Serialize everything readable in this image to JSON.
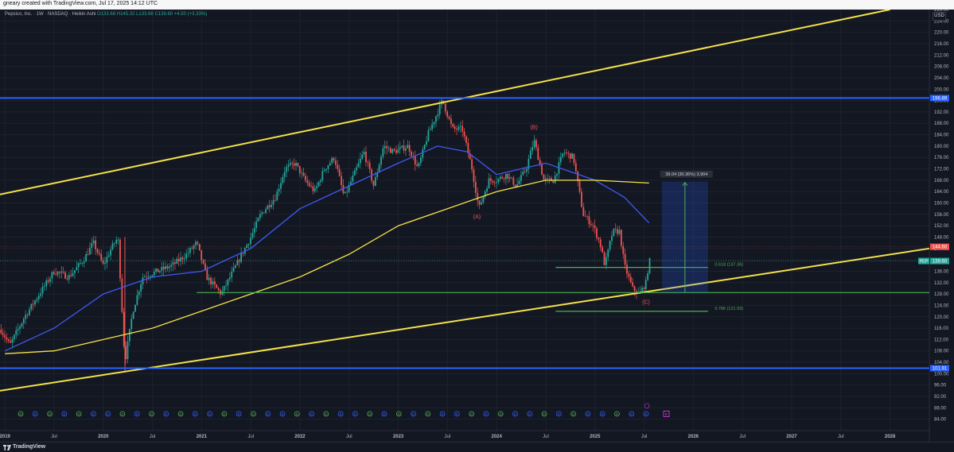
{
  "header": {
    "text": "gneary created with TradingView.com, Jul 17, 2025 14:12 UTC"
  },
  "symbol": {
    "name": "Pepsico, Inc. · 1W · NASDAQ · Heikin Ashi",
    "ohlc": "O133.68 H145.32 L133.68 C139.60 +4.50 (+3.33%)"
  },
  "currency": "USD",
  "branding": {
    "logo": "TradingView"
  },
  "colors": {
    "background": "#131722",
    "up": "#26a69a",
    "down": "#ef5350",
    "yellow": "#f5e14a",
    "blue": "#2962ff",
    "green": "#4caf50",
    "ma_blue": "#3d5af1",
    "ma_yellow": "#f5e14a"
  },
  "chart_data": {
    "type": "candlestick",
    "ylim": [
      80,
      228
    ],
    "y_ticks": [
      84,
      88,
      92,
      96,
      100,
      104,
      108,
      112,
      116,
      120,
      124,
      128,
      132,
      136,
      140,
      144,
      148,
      152,
      156,
      160,
      164,
      168,
      172,
      176,
      180,
      184,
      188,
      192,
      196,
      200,
      204,
      208,
      212,
      216,
      220,
      224,
      228
    ],
    "x_ticks": [
      {
        "label": "2019",
        "t": 2019.0
      },
      {
        "label": "Jul",
        "t": 2019.5
      },
      {
        "label": "2020",
        "t": 2020.0
      },
      {
        "label": "Jul",
        "t": 2020.5
      },
      {
        "label": "2021",
        "t": 2021.0
      },
      {
        "label": "Jul",
        "t": 2021.5
      },
      {
        "label": "2022",
        "t": 2022.0
      },
      {
        "label": "Jul",
        "t": 2022.5
      },
      {
        "label": "2023",
        "t": 2023.0
      },
      {
        "label": "Jul",
        "t": 2023.5
      },
      {
        "label": "2024",
        "t": 2024.0
      },
      {
        "label": "Jul",
        "t": 2024.5
      },
      {
        "label": "2025",
        "t": 2025.0
      },
      {
        "label": "Jul",
        "t": 2025.5
      },
      {
        "label": "2026",
        "t": 2026.0
      },
      {
        "label": "Jul",
        "t": 2026.5
      },
      {
        "label": "2027",
        "t": 2027.0
      },
      {
        "label": "Jul",
        "t": 2027.5
      },
      {
        "label": "2028",
        "t": 2028.0
      }
    ],
    "price_path": [
      [
        2018.95,
        116
      ],
      [
        2019.05,
        110
      ],
      [
        2019.2,
        120
      ],
      [
        2019.35,
        128
      ],
      [
        2019.5,
        136
      ],
      [
        2019.65,
        134
      ],
      [
        2019.8,
        140
      ],
      [
        2019.9,
        146
      ],
      [
        2020.0,
        138
      ],
      [
        2020.08,
        144
      ],
      [
        2020.15,
        148
      ],
      [
        2020.22,
        104
      ],
      [
        2020.3,
        122
      ],
      [
        2020.4,
        134
      ],
      [
        2020.55,
        136
      ],
      [
        2020.7,
        138
      ],
      [
        2020.85,
        142
      ],
      [
        2020.95,
        146
      ],
      [
        2021.05,
        134
      ],
      [
        2021.15,
        130
      ],
      [
        2021.2,
        128
      ],
      [
        2021.35,
        138
      ],
      [
        2021.5,
        148
      ],
      [
        2021.6,
        156
      ],
      [
        2021.75,
        162
      ],
      [
        2021.85,
        172
      ],
      [
        2021.95,
        174
      ],
      [
        2022.05,
        168
      ],
      [
        2022.15,
        164
      ],
      [
        2022.25,
        172
      ],
      [
        2022.35,
        176
      ],
      [
        2022.45,
        162
      ],
      [
        2022.55,
        170
      ],
      [
        2022.65,
        178
      ],
      [
        2022.75,
        166
      ],
      [
        2022.85,
        180
      ],
      [
        2022.95,
        178
      ],
      [
        2023.1,
        180
      ],
      [
        2023.2,
        172
      ],
      [
        2023.3,
        184
      ],
      [
        2023.4,
        192
      ],
      [
        2023.45,
        196
      ],
      [
        2023.55,
        186
      ],
      [
        2023.65,
        186
      ],
      [
        2023.75,
        172
      ],
      [
        2023.82,
        158
      ],
      [
        2023.92,
        168
      ],
      [
        2024.0,
        168
      ],
      [
        2024.1,
        170
      ],
      [
        2024.2,
        166
      ],
      [
        2024.3,
        172
      ],
      [
        2024.38,
        182
      ],
      [
        2024.48,
        168
      ],
      [
        2024.58,
        168
      ],
      [
        2024.68,
        178
      ],
      [
        2024.78,
        176
      ],
      [
        2024.88,
        156
      ],
      [
        2024.98,
        152
      ],
      [
        2025.05,
        146
      ],
      [
        2025.1,
        138
      ],
      [
        2025.18,
        150
      ],
      [
        2025.25,
        150
      ],
      [
        2025.3,
        138
      ],
      [
        2025.38,
        130
      ],
      [
        2025.45,
        128
      ],
      [
        2025.52,
        132
      ],
      [
        2025.55,
        139.6
      ]
    ],
    "ma_blue": [
      [
        2019.0,
        108
      ],
      [
        2019.5,
        116
      ],
      [
        2020.0,
        128
      ],
      [
        2020.5,
        134
      ],
      [
        2021.0,
        136
      ],
      [
        2021.5,
        144
      ],
      [
        2022.0,
        158
      ],
      [
        2022.5,
        166
      ],
      [
        2023.0,
        174
      ],
      [
        2023.4,
        180
      ],
      [
        2023.7,
        178
      ],
      [
        2024.0,
        170
      ],
      [
        2024.5,
        174
      ],
      [
        2025.0,
        168
      ],
      [
        2025.3,
        162
      ],
      [
        2025.55,
        153
      ]
    ],
    "ma_yellow": [
      [
        2019.0,
        107
      ],
      [
        2019.5,
        108
      ],
      [
        2020.0,
        112
      ],
      [
        2020.5,
        116
      ],
      [
        2021.0,
        122
      ],
      [
        2021.5,
        128
      ],
      [
        2022.0,
        134
      ],
      [
        2022.5,
        142
      ],
      [
        2023.0,
        152
      ],
      [
        2023.5,
        158
      ],
      [
        2024.0,
        164
      ],
      [
        2024.5,
        168
      ],
      [
        2025.0,
        168
      ],
      [
        2025.55,
        167
      ]
    ],
    "hlines": [
      {
        "price": 196.89,
        "label": "196.89",
        "color": "#2962ff"
      },
      {
        "price": 101.91,
        "label": "101.91",
        "color": "#2962ff"
      }
    ],
    "channel_lines": [
      {
        "t1": 2018.95,
        "p1": 163,
        "t2": 2028.0,
        "p2": 228,
        "color": "#f5e14a"
      },
      {
        "t1": 2018.95,
        "p1": 94,
        "t2": 2028.4,
        "p2": 144,
        "color": "#f5e14a"
      }
    ],
    "support_line": {
      "t1": 2020.95,
      "t2": 2028.4,
      "price": 128.5
    },
    "fib_lines": [
      {
        "t1": 2024.6,
        "t2": 2026.15,
        "price": 137.36,
        "label": "0.618 (137.36)"
      },
      {
        "t1": 2024.6,
        "t2": 2026.15,
        "price": 121.93,
        "label": "0.786 (121.93)"
      }
    ],
    "wave_labels": [
      {
        "label": "(A)",
        "t": 2023.8,
        "price": 154.5
      },
      {
        "label": "(B)",
        "t": 2024.38,
        "price": 186
      },
      {
        "label": "(C)",
        "t": 2025.52,
        "price": 124.5
      }
    ],
    "measure_box": {
      "t1": 2025.68,
      "t2": 2026.15,
      "p1": 128.5,
      "p2": 167.5,
      "label": "39.04 (30.36%) 3,904"
    },
    "price_labels": [
      {
        "price": 144.6,
        "label": "144.60",
        "color": "#ef5350"
      },
      {
        "price": 139.6,
        "label": "139.60",
        "sublabel": "PEP",
        "color": "#26a69a"
      }
    ],
    "event_markers": {
      "items": [
        "D",
        "E",
        "D",
        "E",
        "D",
        "E",
        "E",
        "D",
        "E",
        "D",
        "E",
        "D",
        "E",
        "E",
        "D",
        "E",
        "D",
        "E",
        "E",
        "D",
        "E",
        "D",
        "E",
        "E",
        "D",
        "E",
        "D",
        "E",
        "D",
        "E",
        "E",
        "D",
        "E",
        "D",
        "E",
        "E",
        "D",
        "E",
        "D",
        "E",
        "E",
        "D",
        "E",
        "E"
      ],
      "last": "E"
    }
  }
}
